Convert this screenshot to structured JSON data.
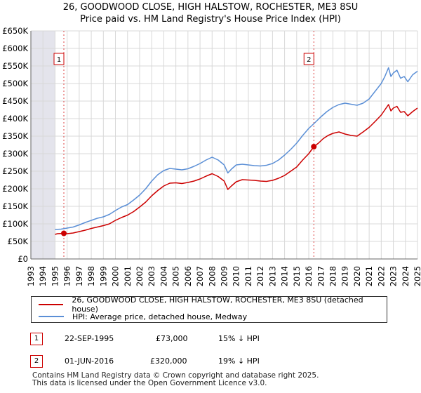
{
  "title_line1": "26, GOODWOOD CLOSE, HIGH HALSTOW, ROCHESTER, ME3 8SU",
  "title_line2": "Price paid vs. HM Land Registry's House Price Index (HPI)",
  "chart_data": {
    "type": "line",
    "title": "26, GOODWOOD CLOSE, HIGH HALSTOW, ROCHESTER, ME3 8SU — Price paid vs. HM Land Registry's House Price Index (HPI)",
    "xlabel": "",
    "ylabel": "",
    "xlim": [
      1993,
      2025
    ],
    "ylim": [
      0,
      650000
    ],
    "y_ticks": [
      0,
      50000,
      100000,
      150000,
      200000,
      250000,
      300000,
      350000,
      400000,
      450000,
      500000,
      550000,
      600000,
      650000
    ],
    "y_tick_labels": [
      "£0",
      "£50K",
      "£100K",
      "£150K",
      "£200K",
      "£250K",
      "£300K",
      "£350K",
      "£400K",
      "£450K",
      "£500K",
      "£550K",
      "£600K",
      "£650K"
    ],
    "x_ticks": [
      "1993",
      "1994",
      "1995",
      "1996",
      "1997",
      "1998",
      "1999",
      "2000",
      "2001",
      "2002",
      "2003",
      "2004",
      "2005",
      "2006",
      "2007",
      "2008",
      "2009",
      "2010",
      "2011",
      "2012",
      "2013",
      "2014",
      "2015",
      "2016",
      "2017",
      "2018",
      "2019",
      "2020",
      "2021",
      "2022",
      "2023",
      "2024",
      "2025"
    ],
    "grid": true,
    "series": [
      {
        "name": "26, GOODWOOD CLOSE, HIGH HALSTOW, ROCHESTER, ME3 8SU (detached house)",
        "color": "#cc0000",
        "x": [
          1995.0,
          1995.2,
          1995.73,
          1996.0,
          1996.5,
          1997.0,
          1997.5,
          1998.0,
          1998.5,
          1999.0,
          1999.5,
          2000.0,
          2000.5,
          2001.0,
          2001.5,
          2002.0,
          2002.5,
          2003.0,
          2003.5,
          2004.0,
          2004.5,
          2005.0,
          2005.5,
          2006.0,
          2006.5,
          2007.0,
          2007.5,
          2008.0,
          2008.5,
          2009.0,
          2009.3,
          2009.6,
          2010.0,
          2010.5,
          2011.0,
          2011.5,
          2012.0,
          2012.5,
          2013.0,
          2013.5,
          2014.0,
          2014.5,
          2015.0,
          2015.5,
          2016.0,
          2016.42,
          2016.8,
          2017.2,
          2017.6,
          2018.0,
          2018.5,
          2019.0,
          2019.5,
          2020.0,
          2020.5,
          2021.0,
          2021.5,
          2022.0,
          2022.3,
          2022.6,
          2022.8,
          2023.0,
          2023.3,
          2023.6,
          2023.9,
          2024.2,
          2024.6,
          2025.0
        ],
        "values": [
          70000,
          72000,
          73000,
          72000,
          74000,
          78000,
          82000,
          87000,
          91000,
          95000,
          100000,
          110000,
          118000,
          125000,
          135000,
          148000,
          162000,
          180000,
          195000,
          208000,
          216000,
          217000,
          215000,
          218000,
          222000,
          228000,
          236000,
          243000,
          235000,
          222000,
          198000,
          208000,
          220000,
          226000,
          225000,
          224000,
          222000,
          221000,
          224000,
          230000,
          238000,
          250000,
          262000,
          282000,
          300000,
          320000,
          330000,
          343000,
          352000,
          358000,
          362000,
          356000,
          352000,
          350000,
          362000,
          375000,
          392000,
          410000,
          425000,
          440000,
          422000,
          430000,
          435000,
          418000,
          420000,
          408000,
          420000,
          430000
        ]
      },
      {
        "name": "HPI: Average price, detached house, Medway",
        "color": "#5b8fd6",
        "x": [
          1995.0,
          1995.5,
          1996.0,
          1996.5,
          1997.0,
          1997.5,
          1998.0,
          1998.5,
          1999.0,
          1999.5,
          2000.0,
          2000.5,
          2001.0,
          2001.5,
          2002.0,
          2002.5,
          2003.0,
          2003.5,
          2004.0,
          2004.5,
          2005.0,
          2005.5,
          2006.0,
          2006.5,
          2007.0,
          2007.5,
          2008.0,
          2008.5,
          2009.0,
          2009.3,
          2009.6,
          2010.0,
          2010.5,
          2011.0,
          2011.5,
          2012.0,
          2012.5,
          2013.0,
          2013.5,
          2014.0,
          2014.5,
          2015.0,
          2015.5,
          2016.0,
          2016.5,
          2017.0,
          2017.5,
          2018.0,
          2018.5,
          2019.0,
          2019.5,
          2020.0,
          2020.5,
          2021.0,
          2021.5,
          2022.0,
          2022.3,
          2022.6,
          2022.8,
          2023.0,
          2023.3,
          2023.6,
          2023.9,
          2024.2,
          2024.6,
          2025.0
        ],
        "values": [
          84000,
          85000,
          88000,
          91000,
          97000,
          104000,
          110000,
          116000,
          120000,
          127000,
          138000,
          148000,
          155000,
          168000,
          182000,
          200000,
          222000,
          240000,
          252000,
          258000,
          256000,
          254000,
          257000,
          264000,
          272000,
          282000,
          290000,
          282000,
          268000,
          245000,
          256000,
          268000,
          270000,
          268000,
          266000,
          265000,
          267000,
          272000,
          282000,
          296000,
          312000,
          330000,
          352000,
          372000,
          388000,
          405000,
          420000,
          432000,
          440000,
          444000,
          441000,
          438000,
          444000,
          456000,
          478000,
          500000,
          520000,
          545000,
          520000,
          530000,
          538000,
          515000,
          520000,
          505000,
          525000,
          535000
        ]
      }
    ],
    "annotations": [
      {
        "label": "1",
        "date": "22-SEP-1995",
        "x": 1995.73,
        "price": 73000
      },
      {
        "label": "2",
        "date": "01-JUN-2016",
        "x": 2016.42,
        "price": 320000
      }
    ]
  },
  "legend": {
    "items": [
      {
        "label": "26, GOODWOOD CLOSE, HIGH HALSTOW, ROCHESTER, ME3 8SU (detached house)",
        "color": "#cc0000"
      },
      {
        "label": "HPI: Average price, detached house, Medway",
        "color": "#5b8fd6"
      }
    ]
  },
  "sales": [
    {
      "num": "1",
      "date": "22-SEP-1995",
      "price": "£73,000",
      "hpi": "15% ↓ HPI"
    },
    {
      "num": "2",
      "date": "01-JUN-2016",
      "price": "£320,000",
      "hpi": "19% ↓ HPI"
    }
  ],
  "footer": {
    "line1": "Contains HM Land Registry data © Crown copyright and database right 2025.",
    "line2": "This data is licensed under the Open Government Licence v3.0."
  }
}
